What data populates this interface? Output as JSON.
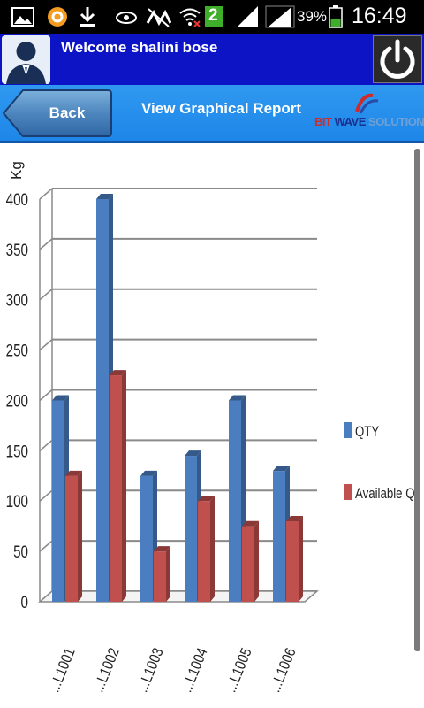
{
  "status_bar": {
    "notification_count": "2",
    "battery": "39%",
    "time": "16:49"
  },
  "header": {
    "welcome": "Welcome shalini bose",
    "avatar_icon": "user-avatar-icon",
    "power_icon": "power-icon"
  },
  "nav": {
    "back_label": "Back",
    "title": "View Graphical Report",
    "logo": {
      "part1": "BIT",
      "part2": "WAVE",
      "part3": "SOLUTIONS"
    }
  },
  "colors": {
    "status_bar": "#000000",
    "header_bg": "#0d14c6",
    "nav_bg": "#2590ec",
    "qty": "#4a7ec0",
    "available": "#c0504d"
  },
  "chart_data": {
    "type": "bar",
    "ylabel": "Kg",
    "ylim": [
      0,
      400
    ],
    "yticks": [
      "0",
      "50",
      "100",
      "150",
      "200",
      "250",
      "300",
      "350",
      "400"
    ],
    "categories": [
      "...L1001",
      "...L1002",
      "...L1003",
      "...L1004",
      "...L1005",
      "...L1006"
    ],
    "series": [
      {
        "name": "QTY",
        "color": "#4a7ec0",
        "values": [
          200,
          400,
          125,
          145,
          200,
          130
        ]
      },
      {
        "name": "Available QTY",
        "color": "#c0504d",
        "values": [
          125,
          225,
          50,
          100,
          75,
          80
        ]
      }
    ],
    "legend": "right",
    "grid": true
  }
}
